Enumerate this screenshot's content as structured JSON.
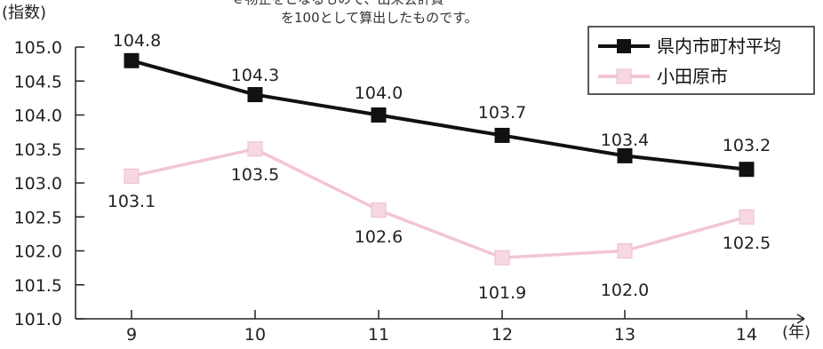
{
  "chart_data": {
    "type": "line",
    "x": [
      "9",
      "10",
      "11",
      "12",
      "13",
      "14"
    ],
    "ylim": [
      101.0,
      105.0
    ],
    "yticks": [
      "101.0",
      "101.5",
      "102.0",
      "102.5",
      "103.0",
      "103.5",
      "104.0",
      "104.5",
      "105.0"
    ],
    "ylabel": "(指数)",
    "xlabel": "(年)",
    "note_lines": [
      "を100として算出したものです。"
    ],
    "legend_position": "top-right",
    "grid": false,
    "series": [
      {
        "name": "県内市町村平均",
        "values": [
          104.8,
          104.3,
          104.0,
          103.7,
          103.4,
          103.2
        ],
        "labels": [
          "104.8",
          "104.3",
          "104.0",
          "103.7",
          "103.4",
          "103.2"
        ],
        "color": "#111111",
        "marker": "filled-square"
      },
      {
        "name": "小田原市",
        "values": [
          103.1,
          103.5,
          102.6,
          101.9,
          102.0,
          102.5
        ],
        "labels": [
          "103.1",
          "103.5",
          "102.6",
          "101.9",
          "102.0",
          "102.5"
        ],
        "color": "#f2c6d2",
        "marker": "light-square"
      }
    ]
  }
}
